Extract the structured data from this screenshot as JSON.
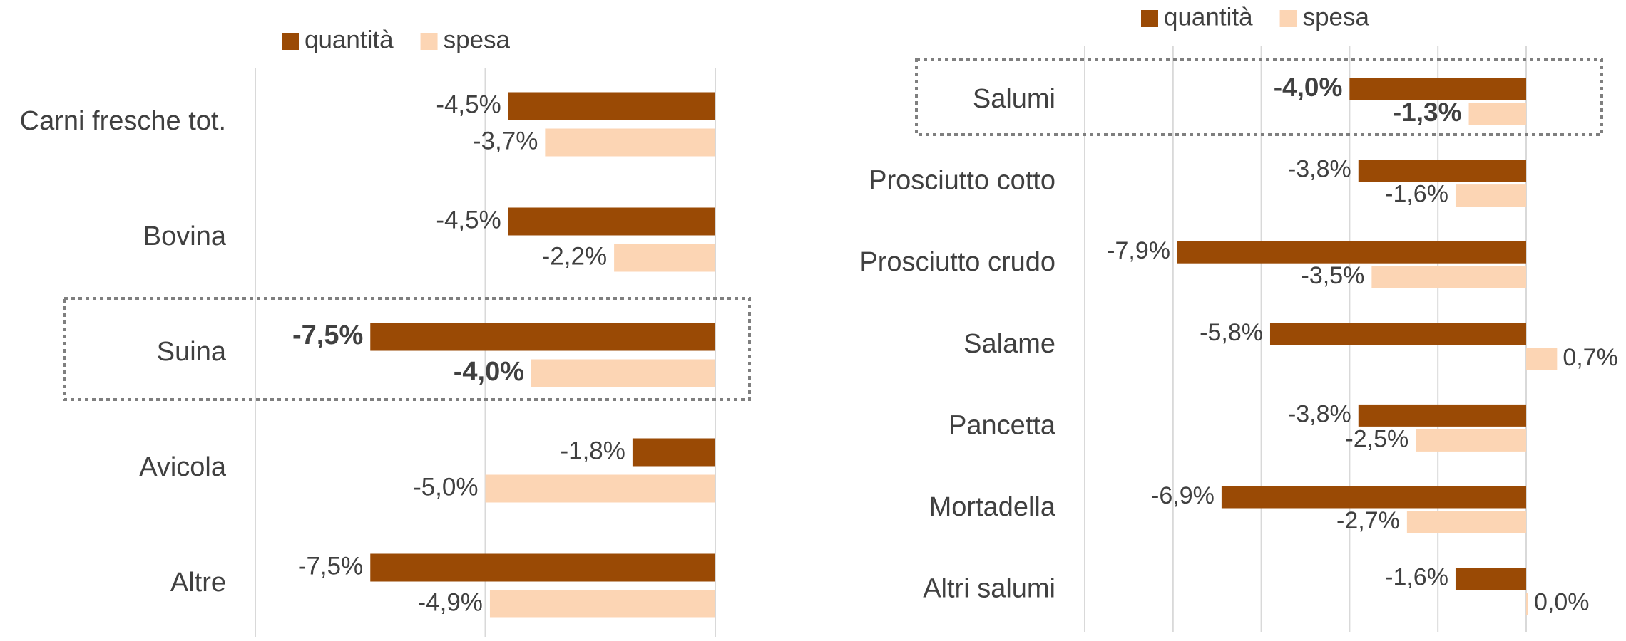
{
  "chart_data": [
    {
      "type": "bar",
      "orientation": "horizontal",
      "categories": [
        "Carni fresche tot.",
        "Bovina",
        "Suina",
        "Avicola",
        "Altre"
      ],
      "series": [
        {
          "name": "quantità",
          "color": "#9a4a05",
          "label_color": "#c0560f",
          "values": [
            -4.5,
            -4.5,
            -7.5,
            -1.8,
            -7.5
          ],
          "value_labels": [
            "-4,5%",
            "-4,5%",
            "-7,5%",
            "-1,8%",
            "-7,5%"
          ]
        },
        {
          "name": "spesa",
          "color": "#fcd5b4",
          "label_color": "#404040",
          "values": [
            -3.7,
            -2.2,
            -4.0,
            -5.0,
            -4.9
          ],
          "value_labels": [
            "-3,7%",
            "-2,2%",
            "-4,0%",
            "-5,0%",
            "-4,9%"
          ]
        }
      ],
      "xlim": [
        -10,
        0
      ],
      "xticks": [
        -10,
        -5,
        0
      ],
      "grid": true,
      "highlight_index": 2
    },
    {
      "type": "bar",
      "orientation": "horizontal",
      "categories": [
        "Salumi",
        "Prosciutto cotto",
        "Prosciutto crudo",
        "Salame",
        "Pancetta",
        "Mortadella",
        "Altri salumi"
      ],
      "series": [
        {
          "name": "quantità",
          "color": "#9a4a05",
          "label_color": "#c0560f",
          "values": [
            -4.0,
            -3.8,
            -7.9,
            -5.8,
            -3.8,
            -6.9,
            -1.6
          ],
          "value_labels": [
            "-4,0%",
            "-3,8%",
            "-7,9%",
            "-5,8%",
            "-3,8%",
            "-6,9%",
            "-1,6%"
          ]
        },
        {
          "name": "spesa",
          "color": "#fcd5b4",
          "label_color": "#404040",
          "values": [
            -1.3,
            -1.6,
            -3.5,
            0.7,
            -2.5,
            -2.7,
            0.0
          ],
          "value_labels": [
            "-1,3%",
            "-1,6%",
            "-3,5%",
            "0,7%",
            "-2,5%",
            "-2,7%",
            "0,0%"
          ]
        }
      ],
      "xlim": [
        -10,
        2
      ],
      "xticks": [
        -10,
        -8,
        -6,
        -4,
        -2,
        0
      ],
      "grid": true,
      "highlight_index": 0
    }
  ]
}
